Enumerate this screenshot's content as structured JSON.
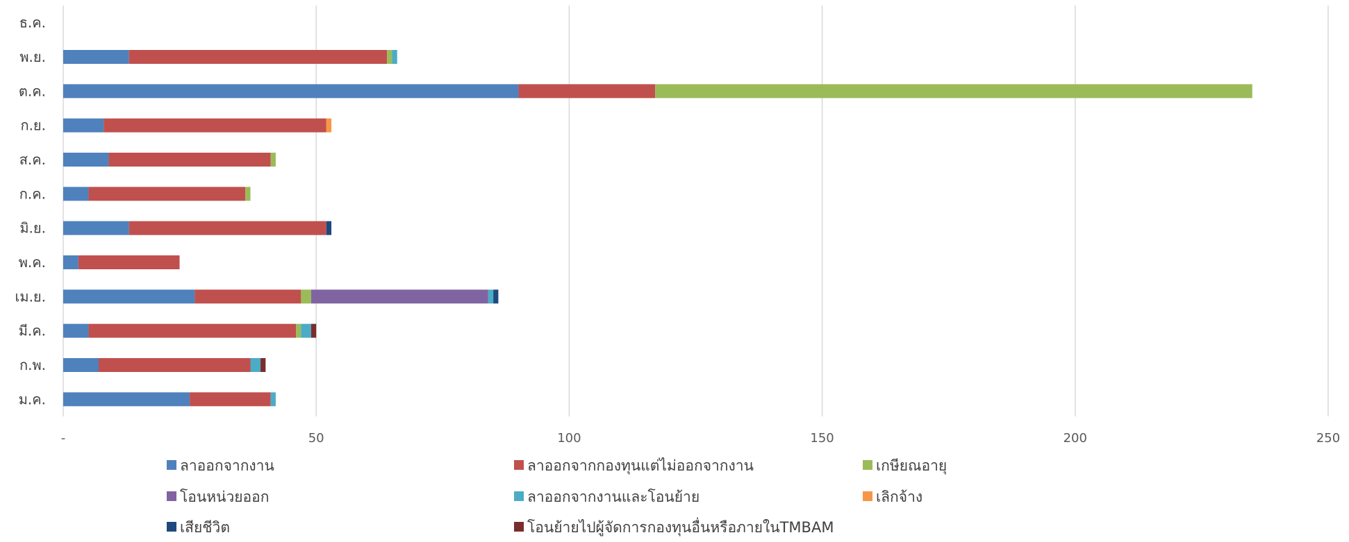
{
  "chart_data": {
    "type": "bar",
    "orientation": "horizontal",
    "stacked": true,
    "categories": [
      "ม.ค.",
      "ก.พ.",
      "มี.ค.",
      "เม.ย.",
      "พ.ค.",
      "มิ.ย.",
      "ก.ค.",
      "ส.ค.",
      "ก.ย.",
      "ต.ค.",
      "พ.ย.",
      "ธ.ค."
    ],
    "x_ticks": [
      "-",
      "50",
      "100",
      "150",
      "200",
      "250"
    ],
    "xlim": [
      0,
      250
    ],
    "grid": true,
    "legend_position": "bottom",
    "series": [
      {
        "name": "ลาออกจากงาน",
        "color": "#4F81BD",
        "values": [
          25,
          7,
          5,
          26,
          3,
          13,
          5,
          9,
          8,
          90,
          13,
          0
        ]
      },
      {
        "name": "ลาออกจากกองทุนแต่ไม่ออกจากงาน",
        "color": "#C0504D",
        "values": [
          16,
          30,
          41,
          21,
          20,
          39,
          31,
          32,
          44,
          27,
          51,
          0
        ]
      },
      {
        "name": "เกษียณอายุ",
        "color": "#9BBB59",
        "values": [
          0,
          0,
          1,
          2,
          0,
          0,
          1,
          1,
          0,
          118,
          1,
          0
        ]
      },
      {
        "name": "โอนหน่วยออก",
        "color": "#8064A2",
        "values": [
          0,
          0,
          0,
          35,
          0,
          0,
          0,
          0,
          0,
          0,
          0,
          0
        ]
      },
      {
        "name": "ลาออกจากงานและโอนย้าย",
        "color": "#4BACC6",
        "values": [
          1,
          2,
          2,
          1,
          0,
          0,
          0,
          0,
          0,
          0,
          1,
          0
        ]
      },
      {
        "name": "เลิกจ้าง",
        "color": "#F79646",
        "values": [
          0,
          0,
          0,
          0,
          0,
          0,
          0,
          0,
          1,
          0,
          0,
          0
        ]
      },
      {
        "name": "เสียชีวิต",
        "color": "#1F497D",
        "values": [
          0,
          0,
          0,
          1,
          0,
          1,
          0,
          0,
          0,
          0,
          0,
          0
        ]
      },
      {
        "name": "โอนย้ายไปผู้จัดการกองทุนอื่นหรือภายในTMBAM",
        "color": "#7B2C2C",
        "values": [
          0,
          1,
          1,
          0,
          0,
          0,
          0,
          0,
          0,
          0,
          0,
          0
        ]
      }
    ]
  }
}
